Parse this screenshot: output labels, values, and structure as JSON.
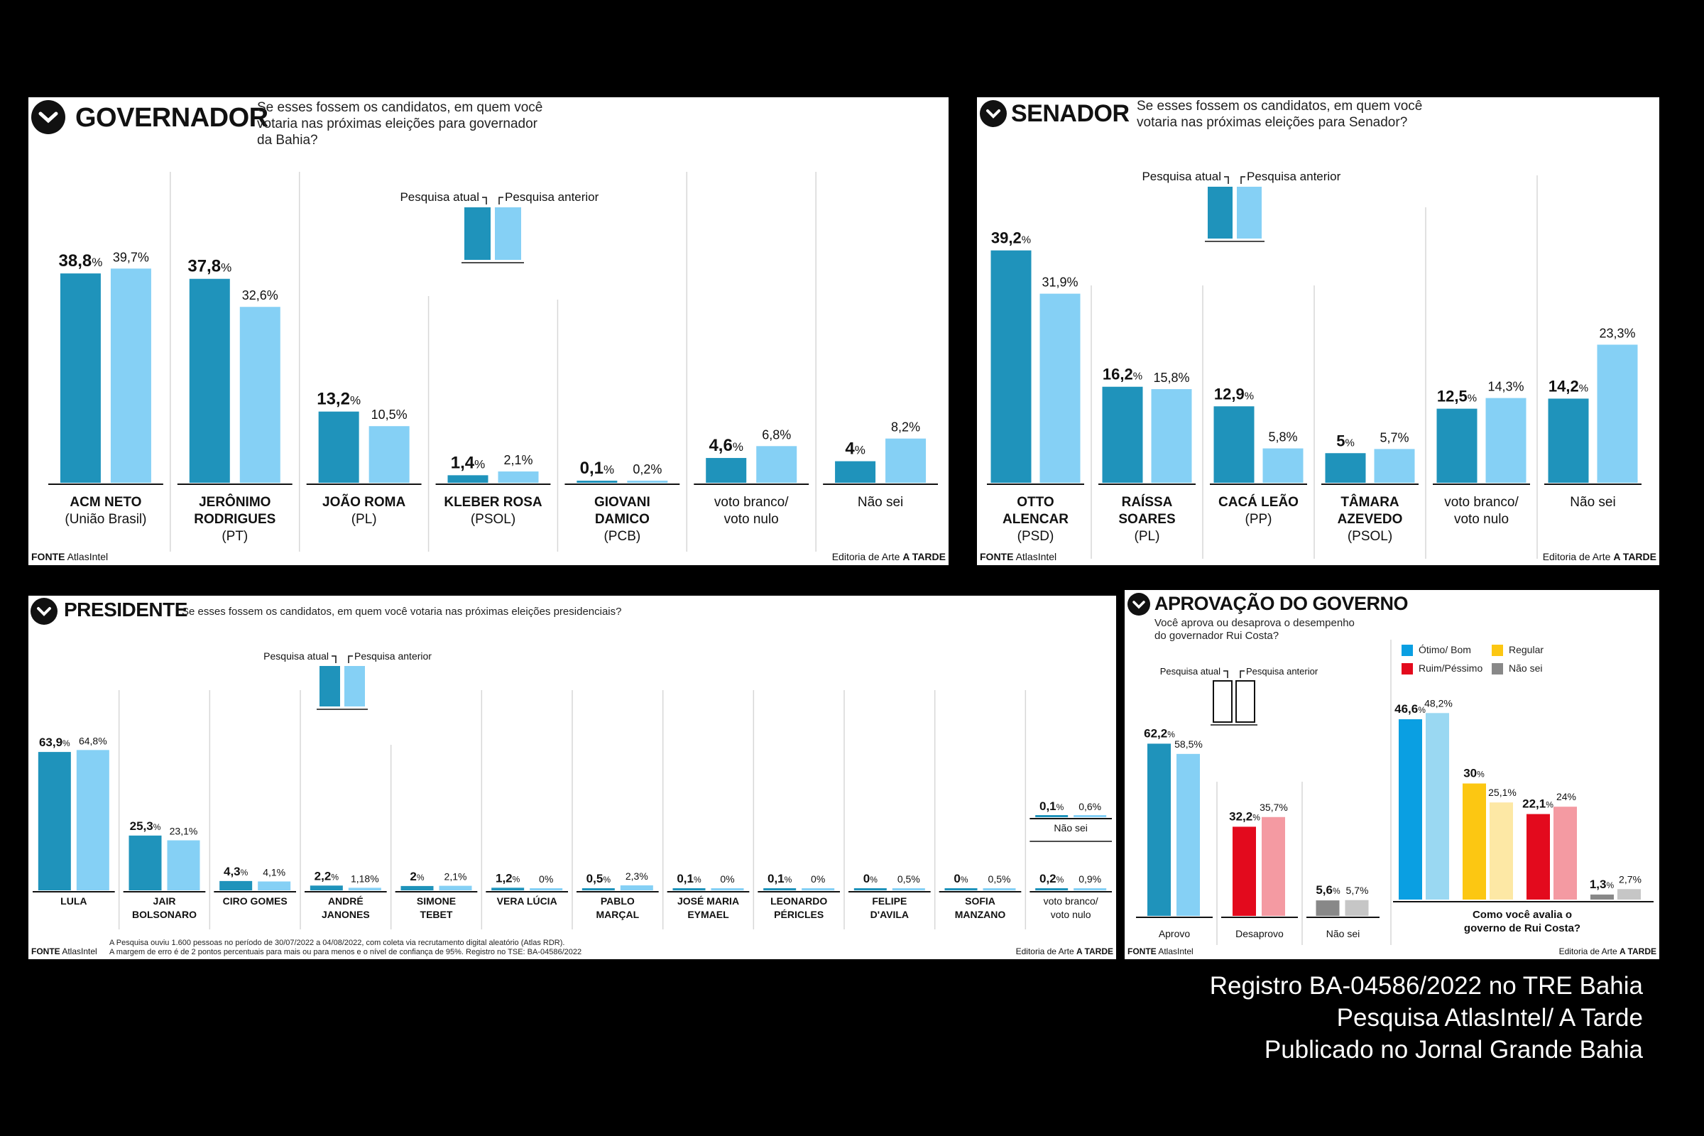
{
  "colors": {
    "current": "#1f93bb",
    "previous": "#85d0f5",
    "otimo_cur": "#0a9fe2",
    "otimo_prev": "#9ad8f2",
    "regular_cur": "#fcc712",
    "regular_prev": "#fde8a5",
    "ruim_cur": "#e30a1d",
    "ruim_prev": "#f49aa2",
    "naosei_cur": "#888888",
    "naosei_prev": "#c6c6c6"
  },
  "legend": {
    "current": "Pesquisa atual",
    "previous": "Pesquisa anterior"
  },
  "footer": {
    "source_label": "FONTE",
    "source": "AtlasIntel",
    "editor_label": "Editoria de Arte",
    "editor": "A TARDE"
  },
  "credits": [
    "Registro BA-04586/2022 no TRE Bahia",
    "Pesquisa AtlasIntel/ A Tarde",
    "Publicado no Jornal Grande Bahia"
  ],
  "governador": {
    "title": "GOVERNADOR",
    "question": "Se esses fossem os candidatos, em quem você\nvotaria nas próximas eleições para governador\nda Bahia?",
    "chart_data": {
      "type": "bar",
      "categories": [
        [
          "ACM NETO",
          "(União Brasil)"
        ],
        [
          "JERÔNIMO",
          "RODRIGUES",
          "(PT)"
        ],
        [
          "JOÃO ROMA",
          "(PL)"
        ],
        [
          "KLEBER ROSA",
          "(PSOL)"
        ],
        [
          "GIOVANI",
          "DAMICO",
          "(PCB)"
        ],
        [
          "voto branco/",
          "voto nulo"
        ],
        [
          "Não sei"
        ]
      ],
      "series": [
        {
          "name": "Pesquisa atual",
          "values": [
            38.8,
            37.8,
            13.2,
            1.4,
            0.1,
            4.6,
            4
          ],
          "labels": [
            "38,8",
            "37,8",
            "13,2",
            "1,4",
            "0,1",
            "4,6",
            "4"
          ]
        },
        {
          "name": "Pesquisa anterior",
          "values": [
            39.7,
            32.6,
            10.5,
            2.1,
            0.2,
            6.8,
            8.2
          ],
          "labels": [
            "39,7%",
            "32,6%",
            "10,5%",
            "2,1%",
            "0,2%",
            "6,8%",
            "8,2%"
          ]
        }
      ]
    }
  },
  "senador": {
    "title": "SENADOR",
    "question": "Se esses fossem os candidatos, em quem você\nvotaria nas próximas eleições para Senador?",
    "chart_data": {
      "type": "bar",
      "categories": [
        [
          "OTTO",
          "ALENCAR",
          "(PSD)"
        ],
        [
          "RAÍSSA",
          "SOARES",
          "(PL)"
        ],
        [
          "CACÁ LEÃO",
          "(PP)"
        ],
        [
          "TÂMARA",
          "AZEVEDO",
          "(PSOL)"
        ],
        [
          "voto branco/",
          "voto nulo"
        ],
        [
          "Não sei"
        ]
      ],
      "series": [
        {
          "name": "Pesquisa atual",
          "values": [
            39.2,
            16.2,
            12.9,
            5,
            12.5,
            14.2
          ],
          "labels": [
            "39,2",
            "16,2",
            "12,9",
            "5",
            "12,5",
            "14,2"
          ]
        },
        {
          "name": "Pesquisa anterior",
          "values": [
            31.9,
            15.8,
            5.8,
            5.7,
            14.3,
            23.3
          ],
          "labels": [
            "31,9%",
            "15,8%",
            "5,8%",
            "5,7%",
            "14,3%",
            "23,3%"
          ]
        }
      ]
    }
  },
  "presidente": {
    "title": "PRESIDENTE",
    "question": "Se esses fossem os candidatos, em quem você votaria nas próximas eleições presidenciais?",
    "note": "A Pesquisa ouviu 1.600 pessoas no período de 30/07/2022 a 04/08/2022, com coleta via recrutamento digital aleatório (Atlas RDR).\nA margem de erro é de 2 pontos percentuais para mais ou para menos e o nível de confiança de 95%. Registro no TSE: BA-04586/2022",
    "chart_data": {
      "type": "bar",
      "categories": [
        [
          "LULA"
        ],
        [
          "JAIR",
          "BOLSONARO"
        ],
        [
          "CIRO GOMES"
        ],
        [
          "ANDRÉ",
          "JANONES"
        ],
        [
          "SIMONE",
          "TEBET"
        ],
        [
          "VERA LÚCIA"
        ],
        [
          "PABLO",
          "MARÇAL"
        ],
        [
          "JOSÉ MARIA",
          "EYMAEL"
        ],
        [
          "LEONARDO",
          "PÉRICLES"
        ],
        [
          "FELIPE",
          "D'AVILA"
        ],
        [
          "SOFIA",
          "MANZANO"
        ],
        [
          "voto branco/",
          "voto nulo"
        ]
      ],
      "series": [
        {
          "name": "Pesquisa atual",
          "values": [
            63.9,
            25.3,
            4.3,
            2.2,
            2,
            1.2,
            0.5,
            0.1,
            0.1,
            0,
            0,
            0.2
          ],
          "labels": [
            "63,9%",
            "25,3%",
            "4,3%",
            "2,2%",
            "2%",
            "1,2%",
            "0,5%",
            "0,1%",
            "0,1%",
            "0%",
            "0%",
            "0,2%"
          ]
        },
        {
          "name": "Pesquisa anterior",
          "values": [
            64.8,
            23.1,
            4.1,
            1.18,
            2.1,
            0,
            2.3,
            0,
            0,
            0.5,
            0.5,
            0.9
          ],
          "labels": [
            "64,8%",
            "23,1%",
            "4,1%",
            "1,18%",
            "2,1%",
            "0%",
            "2,3%",
            "0%",
            "0%",
            "0,5%",
            "0,5%",
            "0,9%"
          ]
        }
      ],
      "extra": {
        "category": "Não sei",
        "current": 0.1,
        "previous": 0.6,
        "current_label": "0,1%",
        "previous_label": "0,6%"
      }
    }
  },
  "aprovacao": {
    "title": "APROVAÇÃO DO GOVERNO",
    "question": "Você aprova ou desaprova o desempenho\ndo governador Rui Costa?",
    "chart_data": {
      "type": "bar",
      "categories": [
        "Aprovo",
        "Desaprovo",
        "Não sei"
      ],
      "series": [
        {
          "name": "Pesquisa atual",
          "values": [
            62.2,
            32.2,
            5.6
          ],
          "labels": [
            "62,2%",
            "32,2%",
            "5,6%"
          ]
        },
        {
          "name": "Pesquisa anterior",
          "values": [
            58.5,
            35.7,
            5.7
          ],
          "labels": [
            "58,5%",
            "35,7%",
            "5,7%"
          ]
        }
      ]
    },
    "avaliacao": {
      "legend": [
        "Ótimo/ Bom",
        "Regular",
        "Ruim/Péssimo",
        "Não sei"
      ],
      "axis_label": "Como você avalia o\ngoverno de Rui Costa?",
      "chart_data": {
        "type": "bar",
        "categories": [
          "Ótimo/ Bom",
          "Regular",
          "Ruim/Péssimo",
          "Não sei"
        ],
        "series": [
          {
            "name": "Pesquisa atual",
            "values": [
              46.6,
              30,
              22.1,
              1.3
            ],
            "labels": [
              "46,6%",
              "30%",
              "22,1%",
              "1,3%"
            ]
          },
          {
            "name": "Pesquisa anterior",
            "values": [
              48.2,
              25.1,
              24,
              2.7
            ],
            "labels": [
              "48,2%",
              "25,1%",
              "24%",
              "2,7%"
            ]
          }
        ]
      }
    }
  }
}
